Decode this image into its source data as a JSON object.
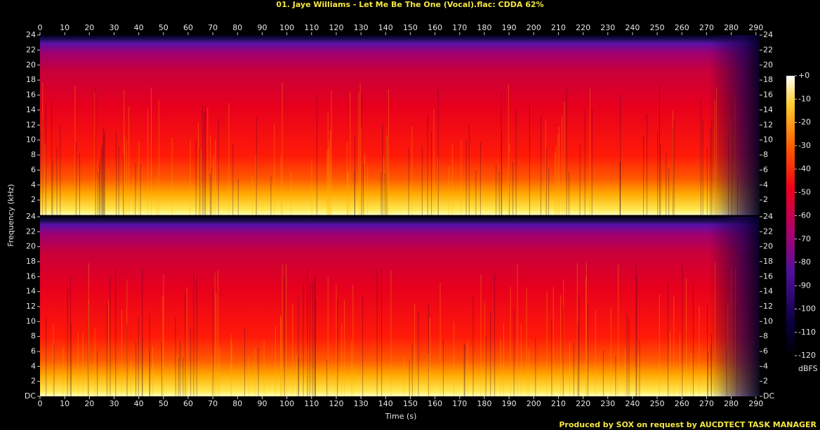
{
  "title": "01. Jaye Williams - Let Me Be The One (Vocal).flac: CDDA 62%",
  "footer": "Produced by SOX on request by AUCDTECT TASK MANAGER",
  "chart_data": [
    {
      "type": "spectrogram",
      "y_label": "Frequency (kHz)",
      "xlim": [
        0,
        291.5
      ],
      "xticks": [
        0,
        10,
        20,
        30,
        40,
        50,
        60,
        70,
        80,
        90,
        100,
        110,
        120,
        130,
        140,
        150,
        160,
        170,
        180,
        190,
        200,
        210,
        220,
        230,
        240,
        250,
        260,
        270,
        280,
        290
      ],
      "ylim": [
        0,
        24
      ],
      "yticks": [
        2,
        4,
        6,
        8,
        10,
        12,
        14,
        16,
        18,
        20,
        22,
        24
      ]
    },
    {
      "type": "spectrogram",
      "x_label": "Time (s)",
      "xlim": [
        0,
        291.5
      ],
      "xticks": [
        0,
        10,
        20,
        30,
        40,
        50,
        60,
        70,
        80,
        90,
        100,
        110,
        120,
        130,
        140,
        150,
        160,
        170,
        180,
        190,
        200,
        210,
        220,
        230,
        240,
        250,
        260,
        270,
        280,
        290
      ],
      "ylim": [
        0,
        24
      ],
      "yticks": [
        {
          "value": 0,
          "label": "DC"
        },
        2,
        4,
        6,
        8,
        10,
        12,
        14,
        16,
        18,
        20,
        22,
        24
      ]
    }
  ],
  "colorbar": {
    "label": "dBFS",
    "lim": [
      -120,
      0
    ],
    "ticks": [
      {
        "value": 0,
        "label": "+0"
      },
      -10,
      -20,
      -30,
      -40,
      -50,
      -60,
      -70,
      -80,
      -90,
      -100,
      -110,
      -120
    ]
  }
}
